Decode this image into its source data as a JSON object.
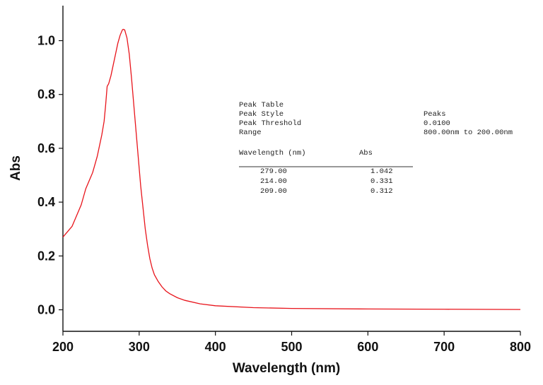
{
  "chart_data": {
    "type": "line",
    "xlabel": "Wavelength (nm)",
    "ylabel": "Abs",
    "xlim": [
      200,
      800
    ],
    "ylim": [
      -0.08,
      1.13
    ],
    "x_ticks": [
      200,
      300,
      400,
      500,
      600,
      700,
      800
    ],
    "y_ticks": [
      0.0,
      0.2,
      0.4,
      0.6,
      0.8,
      1.0
    ],
    "x_tick_labels": [
      "200",
      "300",
      "400",
      "500",
      "600",
      "700",
      "800"
    ],
    "y_tick_labels": [
      "0.0",
      "0.2",
      "0.4",
      "0.6",
      "0.8",
      "1.0"
    ],
    "grid": false,
    "series": [
      {
        "color": "#e8141b",
        "points": [
          [
            200,
            0.27
          ],
          [
            203,
            0.28
          ],
          [
            206,
            0.29
          ],
          [
            209,
            0.3
          ],
          [
            212,
            0.31
          ],
          [
            215,
            0.33
          ],
          [
            218,
            0.35
          ],
          [
            221,
            0.37
          ],
          [
            224,
            0.39
          ],
          [
            227,
            0.42
          ],
          [
            230,
            0.45
          ],
          [
            233,
            0.47
          ],
          [
            236,
            0.49
          ],
          [
            239,
            0.51
          ],
          [
            242,
            0.54
          ],
          [
            245,
            0.57
          ],
          [
            248,
            0.61
          ],
          [
            251,
            0.65
          ],
          [
            254,
            0.7
          ],
          [
            256,
            0.76
          ],
          [
            258,
            0.83
          ],
          [
            260,
            0.84
          ],
          [
            263,
            0.87
          ],
          [
            266,
            0.91
          ],
          [
            269,
            0.95
          ],
          [
            272,
            0.99
          ],
          [
            275,
            1.02
          ],
          [
            278,
            1.04
          ],
          [
            279,
            1.042
          ],
          [
            281,
            1.04
          ],
          [
            284,
            1.01
          ],
          [
            287,
            0.95
          ],
          [
            290,
            0.86
          ],
          [
            293,
            0.76
          ],
          [
            296,
            0.66
          ],
          [
            299,
            0.56
          ],
          [
            302,
            0.46
          ],
          [
            305,
            0.38
          ],
          [
            308,
            0.3
          ],
          [
            311,
            0.24
          ],
          [
            314,
            0.19
          ],
          [
            317,
            0.155
          ],
          [
            320,
            0.13
          ],
          [
            325,
            0.105
          ],
          [
            330,
            0.085
          ],
          [
            335,
            0.07
          ],
          [
            340,
            0.06
          ],
          [
            350,
            0.045
          ],
          [
            360,
            0.035
          ],
          [
            380,
            0.022
          ],
          [
            400,
            0.015
          ],
          [
            450,
            0.008
          ],
          [
            500,
            0.005
          ],
          [
            600,
            0.003
          ],
          [
            700,
            0.002
          ],
          [
            800,
            0.001
          ]
        ]
      }
    ],
    "annotation": {
      "title": "Peak Table",
      "rows": [
        {
          "label": "Peak Style",
          "value": "Peaks"
        },
        {
          "label": "Peak Threshold",
          "value": "0.0100"
        },
        {
          "label": "Range",
          "value": "800.00nm to 200.00nm"
        }
      ],
      "columns": [
        "Wavelength (nm)",
        "Abs"
      ],
      "peaks": [
        {
          "wavelength": "279.00",
          "abs": "1.042"
        },
        {
          "wavelength": "214.00",
          "abs": "0.331"
        },
        {
          "wavelength": "209.00",
          "abs": "0.312"
        }
      ]
    }
  }
}
